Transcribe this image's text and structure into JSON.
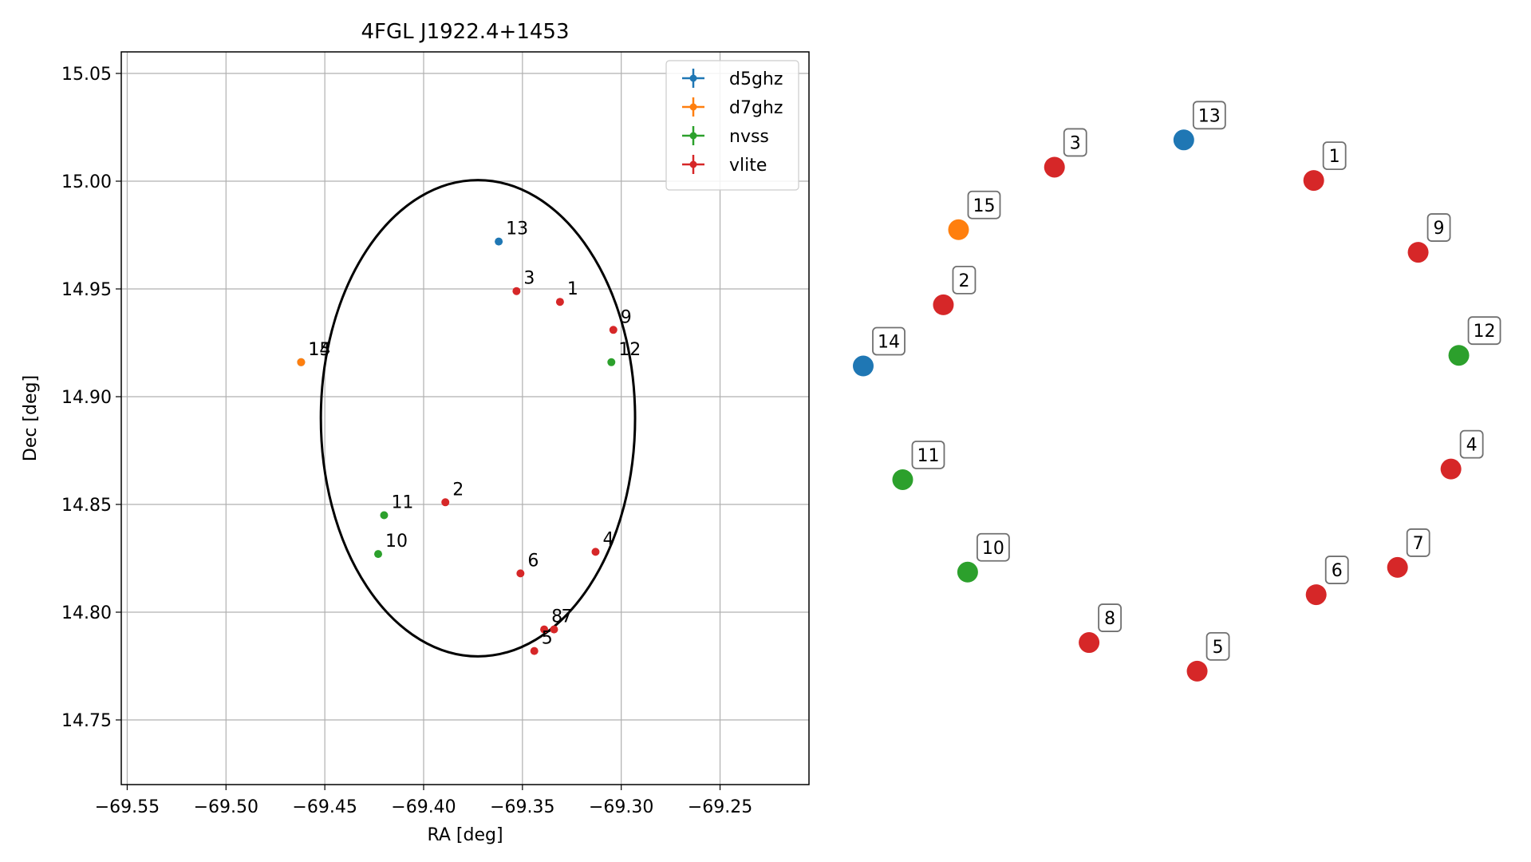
{
  "chart_data": [
    {
      "type": "scatter",
      "title": "4FGL J1922.4+1453",
      "xlabel": "RA [deg]",
      "ylabel": "Dec [deg]",
      "xlim": [
        -69.553,
        -69.205
      ],
      "ylim": [
        14.72,
        15.06
      ],
      "xticks": [
        -69.55,
        -69.5,
        -69.45,
        -69.4,
        -69.35,
        -69.3,
        -69.25
      ],
      "xtick_labels": [
        "−69.55",
        "−69.50",
        "−69.45",
        "−69.40",
        "−69.35",
        "−69.30",
        "−69.25"
      ],
      "yticks": [
        14.75,
        14.8,
        14.85,
        14.9,
        14.95,
        15.0,
        15.05
      ],
      "ytick_labels": [
        "14.75",
        "14.80",
        "14.85",
        "14.90",
        "14.95",
        "15.00",
        "15.05"
      ],
      "grid": true,
      "legend_position": "top-right",
      "series": [
        {
          "name": "d5ghz",
          "color": "#1f77b4",
          "points": [
            {
              "label": "13",
              "x": -69.362,
              "y": 14.972
            },
            {
              "label": "14",
              "x": -69.462,
              "y": 14.916
            }
          ]
        },
        {
          "name": "d7ghz",
          "color": "#ff7f0e",
          "points": [
            {
              "label": "15",
              "x": -69.462,
              "y": 14.916
            }
          ]
        },
        {
          "name": "nvss",
          "color": "#2ca02c",
          "points": [
            {
              "label": "12",
              "x": -69.305,
              "y": 14.916
            },
            {
              "label": "11",
              "x": -69.42,
              "y": 14.845
            },
            {
              "label": "10",
              "x": -69.423,
              "y": 14.827
            }
          ]
        },
        {
          "name": "vlite",
          "color": "#d62728",
          "points": [
            {
              "label": "3",
              "x": -69.353,
              "y": 14.949
            },
            {
              "label": "1",
              "x": -69.331,
              "y": 14.944
            },
            {
              "label": "9",
              "x": -69.304,
              "y": 14.931
            },
            {
              "label": "2",
              "x": -69.389,
              "y": 14.851
            },
            {
              "label": "4",
              "x": -69.313,
              "y": 14.828
            },
            {
              "label": "6",
              "x": -69.351,
              "y": 14.818
            },
            {
              "label": "8",
              "x": -69.339,
              "y": 14.792
            },
            {
              "label": "7",
              "x": -69.334,
              "y": 14.792
            },
            {
              "label": "5",
              "x": -69.344,
              "y": 14.782
            }
          ]
        }
      ],
      "ellipse": {
        "center": [
          -69.3725,
          14.89
        ],
        "semi_axis_x": 0.0795,
        "semi_axis_y": 0.1105,
        "color": "#000000"
      }
    },
    {
      "type": "scatter",
      "title": "",
      "axes_visible": false,
      "xlim": [
        0,
        100
      ],
      "ylim": [
        0,
        100
      ],
      "points": [
        {
          "label": "13",
          "color": "#1f77b4",
          "x": 52.8,
          "y": 91.8
        },
        {
          "label": "3",
          "color": "#d62728",
          "x": 31.5,
          "y": 87.7
        },
        {
          "label": "1",
          "color": "#d62728",
          "x": 74.2,
          "y": 85.7
        },
        {
          "label": "15",
          "color": "#ff7f0e",
          "x": 15.7,
          "y": 78.3
        },
        {
          "label": "9",
          "color": "#d62728",
          "x": 91.4,
          "y": 74.9
        },
        {
          "label": "2",
          "color": "#d62728",
          "x": 13.2,
          "y": 67.0
        },
        {
          "label": "14",
          "color": "#1f77b4",
          "x": 0.0,
          "y": 57.8
        },
        {
          "label": "12",
          "color": "#2ca02c",
          "x": 98.1,
          "y": 59.4
        },
        {
          "label": "4",
          "color": "#d62728",
          "x": 96.8,
          "y": 42.3
        },
        {
          "label": "11",
          "color": "#2ca02c",
          "x": 6.5,
          "y": 40.7
        },
        {
          "label": "10",
          "color": "#2ca02c",
          "x": 17.2,
          "y": 26.8
        },
        {
          "label": "7",
          "color": "#d62728",
          "x": 88.0,
          "y": 27.5
        },
        {
          "label": "6",
          "color": "#d62728",
          "x": 74.6,
          "y": 23.4
        },
        {
          "label": "8",
          "color": "#d62728",
          "x": 37.2,
          "y": 16.2
        },
        {
          "label": "5",
          "color": "#d62728",
          "x": 55.0,
          "y": 11.9
        }
      ]
    }
  ]
}
